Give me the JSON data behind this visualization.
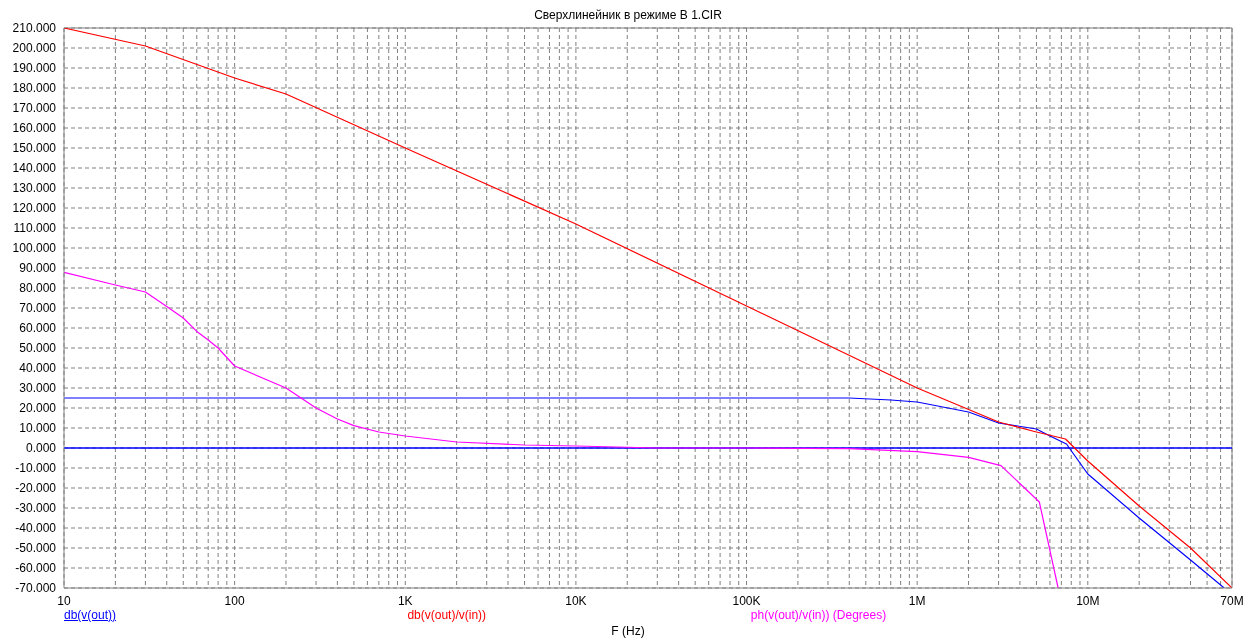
{
  "chart_data": {
    "type": "line",
    "title": "Сверхлинейник в режиме B 1.CIR",
    "xlabel": "F (Hz)",
    "log": "x",
    "grid": true,
    "legend": "bottom",
    "marker": "none",
    "line_style": "solid",
    "xlim": [
      10,
      70000000
    ],
    "xticks": [
      10,
      {
        "value": 20,
        "label": null
      },
      {
        "value": 30,
        "label": null
      },
      {
        "value": 40,
        "label": null
      },
      {
        "value": 50,
        "label": null
      },
      {
        "value": 60,
        "label": null
      },
      {
        "value": 70,
        "label": null
      },
      {
        "value": 80,
        "label": null
      },
      {
        "value": 90,
        "label": null
      },
      100,
      {
        "value": 200,
        "label": null
      },
      {
        "value": 300,
        "label": null
      },
      {
        "value": 400,
        "label": null
      },
      {
        "value": 500,
        "label": null
      },
      {
        "value": 600,
        "label": null
      },
      {
        "value": 700,
        "label": null
      },
      {
        "value": 800,
        "label": null
      },
      {
        "value": 900,
        "label": null
      },
      {
        "value": 1000,
        "label": "1K"
      },
      {
        "value": 2000,
        "label": null
      },
      {
        "value": 3000,
        "label": null
      },
      {
        "value": 4000,
        "label": null
      },
      {
        "value": 5000,
        "label": null
      },
      {
        "value": 6000,
        "label": null
      },
      {
        "value": 7000,
        "label": null
      },
      {
        "value": 8000,
        "label": null
      },
      {
        "value": 9000,
        "label": null
      },
      {
        "value": 10000,
        "label": "10K"
      },
      {
        "value": 20000,
        "label": null
      },
      {
        "value": 30000,
        "label": null
      },
      {
        "value": 40000,
        "label": null
      },
      {
        "value": 50000,
        "label": null
      },
      {
        "value": 60000,
        "label": null
      },
      {
        "value": 70000,
        "label": null
      },
      {
        "value": 80000,
        "label": null
      },
      {
        "value": 90000,
        "label": null
      },
      {
        "value": 100000,
        "label": "100K"
      },
      {
        "value": 200000,
        "label": null
      },
      {
        "value": 300000,
        "label": null
      },
      {
        "value": 400000,
        "label": null
      },
      {
        "value": 500000,
        "label": null
      },
      {
        "value": 600000,
        "label": null
      },
      {
        "value": 700000,
        "label": null
      },
      {
        "value": 800000,
        "label": null
      },
      {
        "value": 900000,
        "label": null
      },
      {
        "value": 1000000,
        "label": "1M"
      },
      {
        "value": 2000000,
        "label": null
      },
      {
        "value": 3000000,
        "label": null
      },
      {
        "value": 4000000,
        "label": null
      },
      {
        "value": 5000000,
        "label": null
      },
      {
        "value": 6000000,
        "label": null
      },
      {
        "value": 7000000,
        "label": null
      },
      {
        "value": 8000000,
        "label": null
      },
      {
        "value": 9000000,
        "label": null
      },
      {
        "value": 10000000,
        "label": "10M"
      },
      {
        "value": 20000000,
        "label": null
      },
      {
        "value": 30000000,
        "label": null
      },
      {
        "value": 40000000,
        "label": null
      },
      {
        "value": 50000000,
        "label": null
      },
      {
        "value": 60000000,
        "label": null
      },
      {
        "value": 70000000,
        "label": "70M"
      }
    ],
    "ylim": [
      -70,
      210
    ],
    "yticks": [
      {
        "value": -70,
        "label": "-70.000"
      },
      {
        "value": -60,
        "label": "-60.000"
      },
      {
        "value": -50,
        "label": "-50.000"
      },
      {
        "value": -40,
        "label": "-40.000"
      },
      {
        "value": -30,
        "label": "-30.000"
      },
      {
        "value": -20,
        "label": "-20.000"
      },
      {
        "value": -10,
        "label": "-10.000"
      },
      {
        "value": 0,
        "label": "0.000"
      },
      {
        "value": 10,
        "label": "10.000"
      },
      {
        "value": 20,
        "label": "20.000"
      },
      {
        "value": 30,
        "label": "30.000"
      },
      {
        "value": 40,
        "label": "40.000"
      },
      {
        "value": 50,
        "label": "50.000"
      },
      {
        "value": 60,
        "label": "60.000"
      },
      {
        "value": 70,
        "label": "70.000"
      },
      {
        "value": 80,
        "label": "80.000"
      },
      {
        "value": 90,
        "label": "90.000"
      },
      {
        "value": 100,
        "label": "100.000"
      },
      {
        "value": 110,
        "label": "110.000"
      },
      {
        "value": 120,
        "label": "120.000"
      },
      {
        "value": 130,
        "label": "130.000"
      },
      {
        "value": 140,
        "label": "140.000"
      },
      {
        "value": 150,
        "label": "150.000"
      },
      {
        "value": 160,
        "label": "160.000"
      },
      {
        "value": 170,
        "label": "170.000"
      },
      {
        "value": 180,
        "label": "180.000"
      },
      {
        "value": 190,
        "label": "190.000"
      },
      {
        "value": 200,
        "label": "200.000"
      },
      {
        "value": 210,
        "label": "210.000"
      }
    ],
    "ref_lines": [
      {
        "axis": "y",
        "value": 0,
        "label": null,
        "color": "#0000ff"
      }
    ],
    "series": [
      {
        "name": "db(v(out))",
        "color": "#0000ff",
        "x": [
          10,
          400000,
          700000,
          1000000,
          2000000,
          3000000,
          5000000,
          6000000,
          7500000,
          10000000,
          11000000,
          20000000,
          40000000,
          63000000
        ],
        "values": [
          25,
          25,
          24,
          23,
          18,
          12.5,
          9.5,
          6,
          2,
          -13,
          -16,
          -35,
          -56,
          -70
        ]
      },
      {
        "name": "db(v(out)/v(in))",
        "color": "#ff0000",
        "x": [
          10,
          30,
          100,
          200,
          1000,
          10000,
          100000,
          1000000,
          3000000,
          5000000,
          7400000,
          10000000,
          20000000,
          40000000,
          70000000
        ],
        "values": [
          210,
          201,
          185,
          177,
          150,
          112,
          71,
          30,
          13,
          8,
          4.5,
          -6.5,
          -29,
          -50,
          -70
        ]
      },
      {
        "name": "ph(v(out)/v(in)) (Degrees)",
        "color": "#ff00ff",
        "x": [
          10,
          20,
          30,
          40,
          50,
          60,
          70,
          80,
          100,
          200,
          250,
          300,
          400,
          500,
          700,
          1000,
          2000,
          5000,
          10000,
          30000,
          100000,
          400000,
          1000000,
          2000000,
          3100000,
          5200000,
          6700000
        ],
        "values": [
          87.8,
          81.5,
          78,
          70.7,
          65,
          58.3,
          54,
          50,
          41,
          30,
          24.5,
          20,
          14.5,
          11.2,
          8,
          6,
          3,
          1.5,
          1,
          0,
          0,
          -0.3,
          -1.8,
          -4.7,
          -8.8,
          -27,
          -70
        ]
      }
    ]
  }
}
